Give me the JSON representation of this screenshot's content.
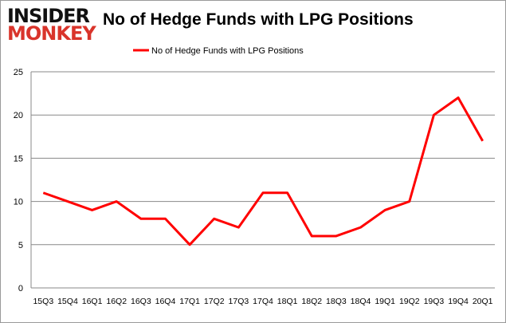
{
  "logo": {
    "line1": "INSIDER",
    "line2": "MONKEY"
  },
  "chart_data": {
    "type": "line",
    "title": "No of Hedge Funds with LPG Positions",
    "categories": [
      "15Q3",
      "15Q4",
      "16Q1",
      "16Q2",
      "16Q3",
      "16Q4",
      "17Q1",
      "17Q2",
      "17Q3",
      "17Q4",
      "18Q1",
      "18Q2",
      "18Q3",
      "18Q4",
      "19Q1",
      "19Q2",
      "19Q3",
      "19Q4",
      "20Q1"
    ],
    "series": [
      {
        "name": "No of Hedge Funds with LPG Positions",
        "color": "#ff0000",
        "values": [
          11,
          10,
          9,
          10,
          8,
          8,
          5,
          8,
          7,
          11,
          11,
          6,
          6,
          7,
          9,
          10,
          20,
          22,
          17
        ]
      }
    ],
    "ylim": [
      0,
      25
    ],
    "yticks": [
      0,
      5,
      10,
      15,
      20,
      25
    ],
    "grid": true,
    "legend": "top-center"
  }
}
